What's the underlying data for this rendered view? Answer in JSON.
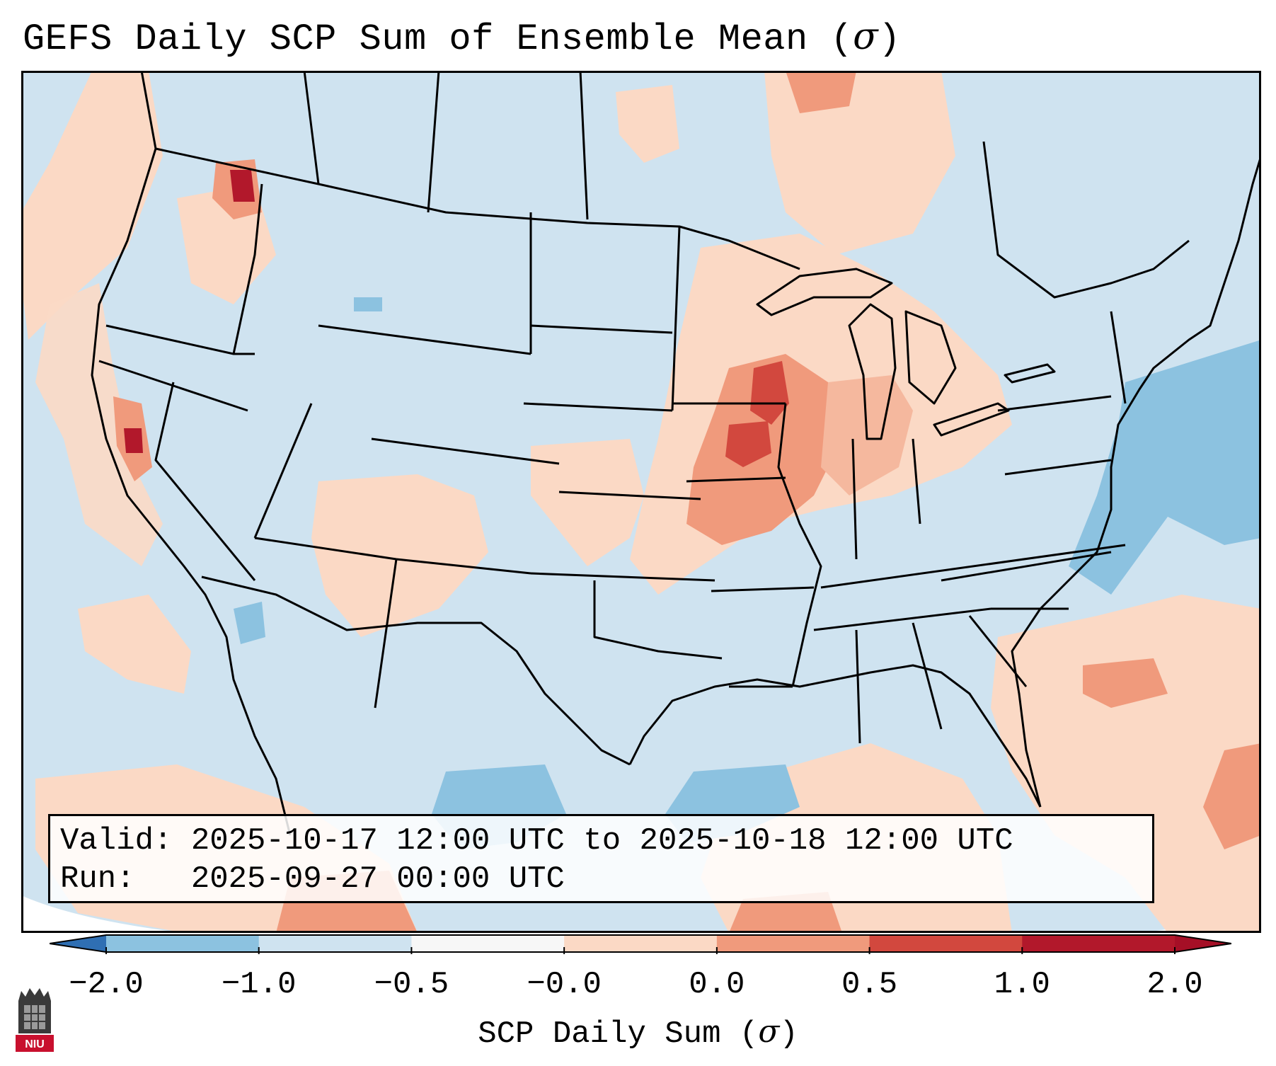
{
  "header": {
    "title_text": "GEFS Daily SCP Sum of Ensemble Mean (",
    "title_sigma": "σ",
    "title_close": ")"
  },
  "info_box": {
    "valid_label": "Valid:",
    "valid_value": "2025-10-17 12:00 UTC to 2025-10-18 12:00 UTC",
    "run_label": "Run:",
    "run_value": "2025-09-27 00:00 UTC"
  },
  "colorbar": {
    "label_text": "SCP Daily Sum (",
    "label_sigma": "σ",
    "label_close": ")",
    "ticks": [
      "−2.0",
      "−1.0",
      "−0.5",
      "−0.0",
      "0.0",
      "0.5",
      "1.0",
      "2.0"
    ],
    "colors": [
      "#3a7fc0",
      "#8cc2e0",
      "#cfe3f0",
      "#f7f7f7",
      "#fbd9c5",
      "#f09a7c",
      "#d2483e",
      "#b2182b"
    ],
    "under_color": "#2f6fb3",
    "over_color": "#a50f26"
  },
  "logo": {
    "text": "NIU",
    "color": "#c8102e"
  }
}
